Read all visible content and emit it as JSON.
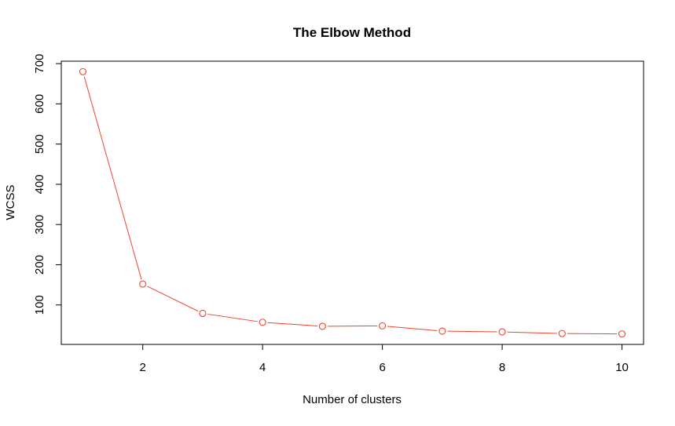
{
  "chart_data": {
    "type": "line",
    "title": "The Elbow Method",
    "xlabel": "Number of clusters",
    "ylabel": "WCSS",
    "x": [
      1,
      2,
      3,
      4,
      5,
      6,
      7,
      8,
      9,
      10
    ],
    "series": [
      {
        "values": [
          680,
          152,
          79,
          57,
          47,
          48,
          35,
          33,
          29,
          28
        ],
        "color": "#f0442d",
        "marker": "open-circle"
      }
    ],
    "xlim": [
      0.64,
      10.36
    ],
    "ylim": [
      1.92,
      706.08
    ],
    "xticks": [
      2,
      4,
      6,
      8,
      10
    ],
    "yticks": [
      100,
      200,
      300,
      400,
      500,
      600,
      700
    ],
    "grid": false,
    "legend": "none"
  }
}
